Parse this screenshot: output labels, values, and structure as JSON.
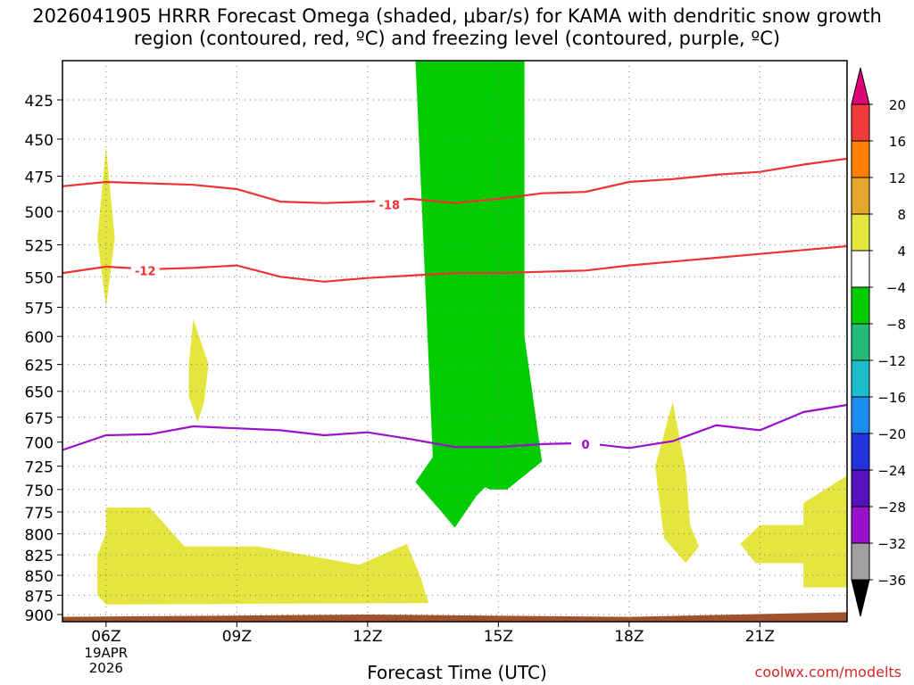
{
  "title": "2026041905 HRRR Forecast Omega (shaded, μbar/s) for KAMA with dendritic snow growth region (contoured, red, ºC) and freezing level (contoured, purple, ºC)",
  "credit": "coolwx.com/modelts",
  "chart_data": {
    "type": "contour",
    "xlabel": "Forecast Time (UTC)",
    "ylabel": "",
    "x_range_hours": [
      5,
      23
    ],
    "y_range_mb": [
      400,
      910
    ],
    "y_scale": "log-pressure (inverted)",
    "grid": "dotted",
    "x_ticks": [
      {
        "hour": 6,
        "label": "06Z",
        "sublabel": "19APR\n2026"
      },
      {
        "hour": 9,
        "label": "09Z"
      },
      {
        "hour": 12,
        "label": "12Z"
      },
      {
        "hour": 15,
        "label": "15Z"
      },
      {
        "hour": 18,
        "label": "18Z"
      },
      {
        "hour": 21,
        "label": "21Z"
      }
    ],
    "y_ticks": [
      "425",
      "450",
      "475",
      "500",
      "525",
      "550",
      "575",
      "600",
      "625",
      "650",
      "675",
      "700",
      "725",
      "750",
      "775",
      "800",
      "825",
      "850",
      "875",
      "900"
    ],
    "shaded_regions": [
      {
        "color": "#00cc00",
        "range": "-8 to -4",
        "points": [
          [
            13.1,
            400
          ],
          [
            15.6,
            400
          ],
          [
            15.6,
            600
          ],
          [
            16.0,
            720
          ],
          [
            15.2,
            750
          ],
          [
            14.8,
            750
          ],
          [
            13.5,
            720
          ],
          [
            13.1,
            400
          ]
        ]
      },
      {
        "color": "#e5e53f",
        "range": "4 to 8",
        "points": [
          [
            6.0,
            455
          ],
          [
            6.2,
            520
          ],
          [
            6.0,
            575
          ],
          [
            5.8,
            520
          ]
        ]
      },
      {
        "color": "#e5e53f",
        "range": "4 to 8",
        "points": [
          [
            8.0,
            585
          ],
          [
            8.35,
            625
          ],
          [
            8.25,
            660
          ],
          [
            8.1,
            680
          ],
          [
            7.9,
            655
          ],
          [
            7.9,
            625
          ]
        ]
      },
      {
        "color": "#00cc00",
        "range": "-8 to -4",
        "points": [
          [
            14.0,
            705
          ],
          [
            14.6,
            711
          ],
          [
            15.0,
            720
          ],
          [
            14.9,
            738
          ],
          [
            14.5,
            757
          ],
          [
            14.0,
            793
          ],
          [
            13.7,
            775
          ],
          [
            13.1,
            742
          ],
          [
            13.5,
            715
          ]
        ]
      },
      {
        "color": "#e5e53f",
        "range": "4 to 8",
        "points": [
          [
            6.0,
            770
          ],
          [
            7.0,
            770
          ],
          [
            7.8,
            815
          ],
          [
            9.5,
            815
          ],
          [
            11.8,
            837
          ],
          [
            12.9,
            812
          ],
          [
            13.2,
            850
          ],
          [
            13.4,
            885
          ],
          [
            6.0,
            887
          ],
          [
            5.8,
            875
          ],
          [
            5.8,
            825
          ],
          [
            6.0,
            800
          ]
        ]
      },
      {
        "color": "#e5e53f",
        "range": "4 to 8",
        "points": [
          [
            19.0,
            660
          ],
          [
            19.3,
            730
          ],
          [
            19.4,
            790
          ],
          [
            19.6,
            815
          ],
          [
            19.3,
            835
          ],
          [
            18.8,
            805
          ],
          [
            18.6,
            725
          ]
        ]
      },
      {
        "color": "#e5e53f",
        "range": "4 to 8",
        "points": [
          [
            23.0,
            735
          ],
          [
            23.0,
            865
          ],
          [
            22.0,
            865
          ],
          [
            22.0,
            835
          ],
          [
            20.9,
            835
          ],
          [
            20.55,
            812
          ],
          [
            21.0,
            790
          ],
          [
            22.0,
            790
          ],
          [
            22.0,
            765
          ]
        ]
      },
      {
        "color": "#a0522d",
        "range": "terrain",
        "points": [
          [
            5.0,
            903
          ],
          [
            12.0,
            900
          ],
          [
            18.0,
            903
          ],
          [
            23.0,
            897
          ],
          [
            23.0,
            910
          ],
          [
            5.0,
            910
          ]
        ]
      }
    ],
    "series": [
      {
        "name": "-18",
        "color": "#ee3333",
        "label_at": [
          12.5,
          495
        ],
        "points": [
          [
            5,
            482
          ],
          [
            6,
            479
          ],
          [
            8,
            481
          ],
          [
            9,
            484
          ],
          [
            10,
            493
          ],
          [
            11,
            494
          ],
          [
            12,
            493
          ],
          [
            13,
            491
          ],
          [
            14,
            494
          ],
          [
            15,
            491
          ],
          [
            16,
            487
          ],
          [
            17,
            486
          ],
          [
            18,
            479
          ],
          [
            19,
            477
          ],
          [
            20,
            474
          ],
          [
            21,
            472
          ],
          [
            22,
            467
          ],
          [
            23,
            463
          ]
        ]
      },
      {
        "name": "-12",
        "color": "#ee3333",
        "label_at": [
          6.9,
          545
        ],
        "points": [
          [
            5,
            547
          ],
          [
            6,
            542
          ],
          [
            7,
            544
          ],
          [
            8,
            543
          ],
          [
            9,
            541
          ],
          [
            10,
            550
          ],
          [
            11,
            554
          ],
          [
            12,
            551
          ],
          [
            13,
            549
          ],
          [
            14,
            547
          ],
          [
            15,
            547
          ],
          [
            16,
            546
          ],
          [
            17,
            545
          ],
          [
            18,
            541
          ],
          [
            19,
            538
          ],
          [
            20,
            535
          ],
          [
            21,
            532
          ],
          [
            22,
            529
          ],
          [
            23,
            526
          ]
        ]
      },
      {
        "name": "0",
        "color": "#9911cc",
        "label_at": [
          17.0,
          702
        ],
        "points": [
          [
            5,
            708
          ],
          [
            6,
            693
          ],
          [
            7,
            692
          ],
          [
            8,
            684
          ],
          [
            9,
            686
          ],
          [
            10,
            688
          ],
          [
            11,
            693
          ],
          [
            12,
            690
          ],
          [
            13,
            697
          ],
          [
            14,
            705
          ],
          [
            15,
            705
          ],
          [
            16,
            702
          ],
          [
            17,
            701
          ],
          [
            18,
            706
          ],
          [
            19,
            699
          ],
          [
            20,
            683
          ],
          [
            21,
            688
          ],
          [
            22,
            670
          ],
          [
            23,
            663
          ]
        ]
      }
    ],
    "colorbar": {
      "ticks": [
        "20",
        "16",
        "12",
        "8",
        "4",
        "−4",
        "−8",
        "−12",
        "−16",
        "−20",
        "−24",
        "−28",
        "−32",
        "−36"
      ],
      "colors": [
        "#f03c3c",
        "#ff7f00",
        "#e5a82c",
        "#e5e53f",
        "#ffffff",
        "#00cc00",
        "#22bb77",
        "#1bbccc",
        "#1b8ef0",
        "#2233dd",
        "#5511bb",
        "#9911cc",
        "#a0a0a0"
      ],
      "top_arrow_color": "#dd0077",
      "bottom_arrow_color": "#000000"
    }
  }
}
